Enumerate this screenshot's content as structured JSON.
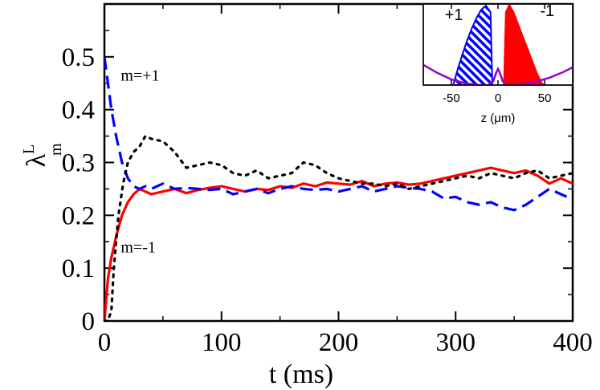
{
  "chart_data": [
    {
      "type": "line",
      "xlabel": "t (ms)",
      "ylabel": "λ",
      "ylabel_sub": "m",
      "ylabel_sup": "L",
      "xlim": [
        0,
        400
      ],
      "ylim": [
        0,
        0.6
      ],
      "xticks": [
        0,
        100,
        200,
        300,
        400
      ],
      "yticks": [
        0,
        0.1,
        0.2,
        0.3,
        0.4,
        0.5
      ],
      "xtick_labels": [
        "0",
        "100",
        "200",
        "300",
        "400"
      ],
      "ytick_labels": [
        "0",
        "0.1",
        "0.2",
        "0.3",
        "0.4",
        "0.5"
      ],
      "grid": false,
      "annotations": [
        {
          "text": "m=+1",
          "x": 14,
          "y": 0.455
        },
        {
          "text": "m=-1",
          "x": 14,
          "y": 0.13
        }
      ],
      "series": [
        {
          "style": "solid",
          "color": "#ff0000",
          "x": [
            0,
            3,
            6,
            10,
            15,
            20,
            25,
            30,
            35,
            40,
            50,
            60,
            70,
            80,
            90,
            100,
            110,
            120,
            130,
            140,
            150,
            160,
            170,
            180,
            190,
            200,
            210,
            220,
            230,
            240,
            250,
            260,
            270,
            280,
            290,
            300,
            310,
            320,
            330,
            340,
            350,
            360,
            370,
            380,
            390,
            400
          ],
          "y": [
            0.0,
            0.08,
            0.12,
            0.16,
            0.2,
            0.225,
            0.24,
            0.25,
            0.245,
            0.24,
            0.245,
            0.25,
            0.242,
            0.248,
            0.252,
            0.255,
            0.25,
            0.245,
            0.25,
            0.248,
            0.255,
            0.252,
            0.26,
            0.255,
            0.262,
            0.26,
            0.258,
            0.265,
            0.255,
            0.26,
            0.262,
            0.258,
            0.26,
            0.265,
            0.27,
            0.275,
            0.28,
            0.285,
            0.29,
            0.285,
            0.28,
            0.285,
            0.275,
            0.26,
            0.27,
            0.26
          ]
        },
        {
          "style": "dashed",
          "color": "#0000ff",
          "x": [
            0,
            3,
            6,
            10,
            15,
            20,
            25,
            30,
            35,
            40,
            50,
            60,
            70,
            80,
            90,
            100,
            110,
            120,
            130,
            140,
            150,
            160,
            170,
            180,
            190,
            200,
            210,
            220,
            230,
            240,
            250,
            260,
            270,
            280,
            290,
            300,
            310,
            320,
            330,
            340,
            350,
            360,
            370,
            380,
            390,
            400
          ],
          "y": [
            0.5,
            0.45,
            0.4,
            0.35,
            0.3,
            0.27,
            0.255,
            0.25,
            0.255,
            0.25,
            0.26,
            0.25,
            0.252,
            0.25,
            0.248,
            0.25,
            0.24,
            0.245,
            0.25,
            0.242,
            0.25,
            0.255,
            0.25,
            0.248,
            0.25,
            0.245,
            0.25,
            0.255,
            0.245,
            0.25,
            0.255,
            0.252,
            0.25,
            0.245,
            0.232,
            0.235,
            0.225,
            0.22,
            0.225,
            0.215,
            0.21,
            0.22,
            0.235,
            0.25,
            0.24,
            0.23
          ]
        },
        {
          "style": "dotted",
          "color": "#000000",
          "x": [
            0,
            3,
            6,
            8,
            12,
            16,
            20,
            25,
            30,
            35,
            40,
            50,
            60,
            70,
            80,
            90,
            100,
            110,
            120,
            130,
            140,
            150,
            160,
            170,
            180,
            190,
            200,
            210,
            220,
            230,
            240,
            250,
            260,
            270,
            280,
            290,
            300,
            310,
            320,
            330,
            340,
            350,
            360,
            370,
            380,
            390,
            400
          ],
          "y": [
            0.0,
            0.0,
            0.02,
            0.1,
            0.2,
            0.26,
            0.3,
            0.32,
            0.33,
            0.35,
            0.345,
            0.34,
            0.32,
            0.29,
            0.295,
            0.3,
            0.295,
            0.28,
            0.275,
            0.285,
            0.27,
            0.275,
            0.28,
            0.3,
            0.295,
            0.28,
            0.27,
            0.265,
            0.26,
            0.26,
            0.255,
            0.26,
            0.25,
            0.255,
            0.26,
            0.265,
            0.27,
            0.275,
            0.27,
            0.28,
            0.275,
            0.27,
            0.28,
            0.285,
            0.27,
            0.275,
            0.28
          ]
        }
      ]
    },
    {
      "type": "area",
      "xlabel": "z (μm)",
      "xlim": [
        -80,
        80
      ],
      "xticks": [
        -50,
        0,
        50
      ],
      "xtick_labels": [
        "-50",
        "0",
        "50"
      ],
      "grid": false,
      "annotations": [
        {
          "text": "+1",
          "x": -57,
          "y": 0.8
        },
        {
          "text": "-1",
          "x": 45,
          "y": 0.85
        }
      ],
      "series": [
        {
          "style": "hatched",
          "color": "#0000ff",
          "x": [
            -48,
            -43,
            -38,
            -33,
            -28,
            -23,
            -18,
            -13,
            -8,
            -6
          ],
          "y": [
            0.0,
            0.2,
            0.38,
            0.55,
            0.7,
            0.83,
            0.93,
            0.98,
            0.9,
            0.0
          ]
        },
        {
          "style": "filled",
          "color": "#ff0000",
          "x": [
            6,
            8,
            12,
            17,
            22,
            27,
            32,
            37,
            42,
            47,
            50
          ],
          "y": [
            0.0,
            0.9,
            1.0,
            0.9,
            0.75,
            0.6,
            0.45,
            0.3,
            0.15,
            0.03,
            0.0
          ]
        },
        {
          "style": "solid",
          "color": "#9400d3",
          "x": [
            -80,
            -65,
            -50,
            -35,
            -20,
            -10,
            -5,
            -2,
            0,
            2,
            5,
            8,
            10,
            15,
            25,
            40,
            55,
            70,
            80
          ],
          "y": [
            0.25,
            0.15,
            0.07,
            0.02,
            0.0,
            0.0,
            0.05,
            0.15,
            0.2,
            0.15,
            0.05,
            0.0,
            0.0,
            0.0,
            0.01,
            0.04,
            0.09,
            0.16,
            0.22
          ]
        }
      ]
    }
  ]
}
